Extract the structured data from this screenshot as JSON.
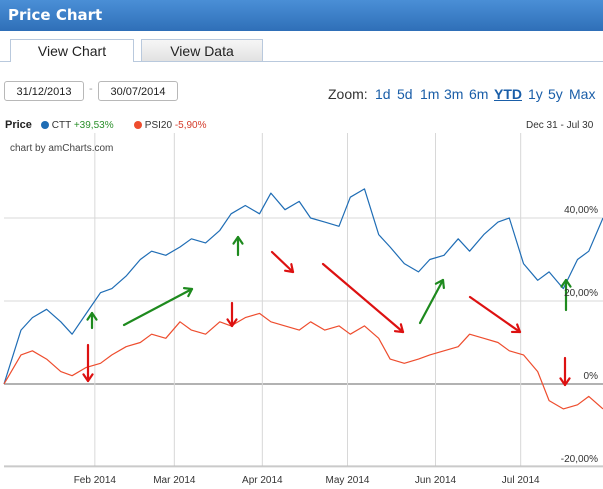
{
  "header": {
    "title": "Price Chart"
  },
  "tabs": [
    {
      "label": "View Chart"
    },
    {
      "label": "View Data"
    }
  ],
  "date_range": {
    "from": "31/12/2013",
    "separator": "-",
    "to": "30/07/2014"
  },
  "zoom": {
    "label": "Zoom:",
    "options": [
      "1d",
      "5d",
      "1m",
      "3m",
      "6m",
      "YTD",
      "1y",
      "5y",
      "Max"
    ],
    "selected": "YTD"
  },
  "legend": {
    "price_label": "Price",
    "series": [
      {
        "name": "CTT",
        "value": "+39,53%",
        "color": "#1f6db5"
      },
      {
        "name": "PSI20",
        "value": "-5,90%",
        "color": "#ee4d2e"
      }
    ],
    "period": "Dec 31 - Jul 30"
  },
  "credit": "chart by amCharts.com",
  "colors": {
    "ctt": "#1f6db5",
    "psi20": "#ee4d2e",
    "arrow_up": "#1e8a1e",
    "arrow_down": "#dd1111"
  },
  "annotations": {
    "arrows": [
      {
        "direction": "down",
        "color": "red"
      },
      {
        "direction": "up",
        "color": "green"
      },
      {
        "direction": "up",
        "color": "green"
      },
      {
        "direction": "down",
        "color": "red"
      },
      {
        "direction": "up",
        "color": "green"
      },
      {
        "direction": "down",
        "color": "red"
      },
      {
        "direction": "down",
        "color": "red"
      },
      {
        "direction": "up",
        "color": "green"
      },
      {
        "direction": "down",
        "color": "red"
      },
      {
        "direction": "up",
        "color": "green"
      },
      {
        "direction": "down",
        "color": "red"
      }
    ]
  },
  "chart_data": {
    "type": "line",
    "grid": true,
    "ylim": [
      -20,
      40
    ],
    "ytick_labels": [
      "40,00%",
      "20,00%",
      "0%",
      "-20,00%"
    ],
    "ytick_values": [
      40,
      20,
      0,
      -20
    ],
    "xtick_labels": [
      "Feb 2014",
      "Mar 2014",
      "Apr 2014",
      "May 2014",
      "Jun 2014",
      "Jul 2014"
    ],
    "xtick_values": [
      "2014-02-01",
      "2014-03-01",
      "2014-04-01",
      "2014-05-01",
      "2014-06-01",
      "2014-07-01"
    ],
    "x_range": [
      "2013-12-31",
      "2014-07-30"
    ],
    "series": [
      {
        "name": "CTT",
        "x": [
          "2013-12-31",
          "2014-01-06",
          "2014-01-10",
          "2014-01-15",
          "2014-01-20",
          "2014-01-24",
          "2014-01-29",
          "2014-02-03",
          "2014-02-07",
          "2014-02-12",
          "2014-02-17",
          "2014-02-21",
          "2014-02-26",
          "2014-03-03",
          "2014-03-07",
          "2014-03-12",
          "2014-03-17",
          "2014-03-21",
          "2014-03-26",
          "2014-03-31",
          "2014-04-04",
          "2014-04-09",
          "2014-04-14",
          "2014-04-18",
          "2014-04-23",
          "2014-04-28",
          "2014-05-02",
          "2014-05-07",
          "2014-05-12",
          "2014-05-16",
          "2014-05-21",
          "2014-05-26",
          "2014-05-30",
          "2014-06-04",
          "2014-06-09",
          "2014-06-13",
          "2014-06-18",
          "2014-06-23",
          "2014-06-27",
          "2014-07-02",
          "2014-07-07",
          "2014-07-11",
          "2014-07-16",
          "2014-07-21",
          "2014-07-25",
          "2014-07-30"
        ],
        "y": [
          0,
          13,
          16,
          18,
          15,
          12,
          17,
          22,
          23,
          26,
          30,
          32,
          31,
          33,
          35,
          34,
          37,
          41,
          43,
          41,
          46,
          42,
          44,
          40,
          39,
          38,
          45,
          47,
          36,
          33,
          29,
          27,
          30,
          31,
          35,
          32,
          36,
          39,
          40,
          29,
          25,
          27,
          23,
          30,
          32,
          40
        ]
      },
      {
        "name": "PSI20",
        "x": [
          "2013-12-31",
          "2014-01-06",
          "2014-01-10",
          "2014-01-15",
          "2014-01-20",
          "2014-01-24",
          "2014-01-29",
          "2014-02-03",
          "2014-02-07",
          "2014-02-12",
          "2014-02-17",
          "2014-02-21",
          "2014-02-26",
          "2014-03-03",
          "2014-03-07",
          "2014-03-12",
          "2014-03-17",
          "2014-03-21",
          "2014-03-26",
          "2014-03-31",
          "2014-04-04",
          "2014-04-09",
          "2014-04-14",
          "2014-04-18",
          "2014-04-23",
          "2014-04-28",
          "2014-05-02",
          "2014-05-07",
          "2014-05-12",
          "2014-05-16",
          "2014-05-21",
          "2014-05-26",
          "2014-05-30",
          "2014-06-04",
          "2014-06-09",
          "2014-06-13",
          "2014-06-18",
          "2014-06-23",
          "2014-06-27",
          "2014-07-02",
          "2014-07-07",
          "2014-07-11",
          "2014-07-16",
          "2014-07-21",
          "2014-07-25",
          "2014-07-30"
        ],
        "y": [
          0,
          7,
          8,
          6,
          3,
          2,
          4,
          5,
          7,
          9,
          10,
          12,
          11,
          15,
          13,
          12,
          15,
          14,
          16,
          17,
          15,
          14,
          13,
          15,
          13,
          14,
          12,
          14,
          11,
          6,
          5,
          6,
          7,
          8,
          9,
          12,
          11,
          10,
          8,
          7,
          3,
          -4,
          -6,
          -5,
          -3,
          -6
        ]
      }
    ]
  }
}
